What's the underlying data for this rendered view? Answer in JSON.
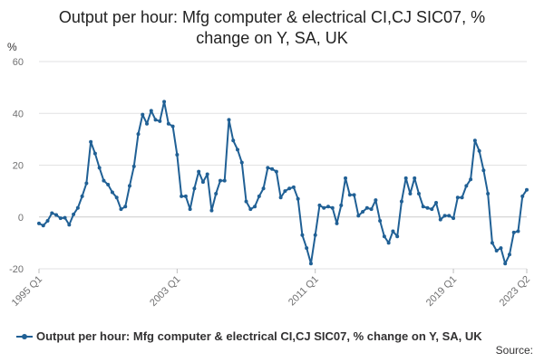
{
  "chart_data": {
    "type": "line",
    "title_line1": "Output per hour: Mfg computer & electrical CI,CJ SIC07, %",
    "title_line2": "change on Y, SA, UK",
    "unit_label": "%",
    "ylim": [
      -20,
      60
    ],
    "y_ticks": [
      "-20",
      "0",
      "20",
      "40",
      "60"
    ],
    "x_tick_labels": [
      "1995 Q1",
      "2003 Q1",
      "2011 Q1",
      "2019 Q1",
      "2023 Q2"
    ],
    "grid": true,
    "legend_position": "bottom-left",
    "series": [
      {
        "name": "Output per hour: Mfg computer & electrical CI,CJ SIC07, % change on Y, SA, UK",
        "color": "#206095",
        "x": [
          "1995 Q1",
          "1995 Q2",
          "1995 Q3",
          "1995 Q4",
          "1996 Q1",
          "1996 Q2",
          "1996 Q3",
          "1996 Q4",
          "1997 Q1",
          "1997 Q2",
          "1997 Q3",
          "1997 Q4",
          "1998 Q1",
          "1998 Q2",
          "1998 Q3",
          "1998 Q4",
          "1999 Q1",
          "1999 Q2",
          "1999 Q3",
          "1999 Q4",
          "2000 Q1",
          "2000 Q2",
          "2000 Q3",
          "2000 Q4",
          "2001 Q1",
          "2001 Q2",
          "2001 Q3",
          "2001 Q4",
          "2002 Q1",
          "2002 Q2",
          "2002 Q3",
          "2002 Q4",
          "2003 Q1",
          "2003 Q2",
          "2003 Q3",
          "2003 Q4",
          "2004 Q1",
          "2004 Q2",
          "2004 Q3",
          "2004 Q4",
          "2005 Q1",
          "2005 Q2",
          "2005 Q3",
          "2005 Q4",
          "2006 Q1",
          "2006 Q2",
          "2006 Q3",
          "2006 Q4",
          "2007 Q1",
          "2007 Q2",
          "2007 Q3",
          "2007 Q4",
          "2008 Q1",
          "2008 Q2",
          "2008 Q3",
          "2008 Q4",
          "2009 Q1",
          "2009 Q2",
          "2009 Q3",
          "2009 Q4",
          "2010 Q1",
          "2010 Q2",
          "2010 Q3",
          "2010 Q4",
          "2011 Q1",
          "2011 Q2",
          "2011 Q3",
          "2011 Q4",
          "2012 Q1",
          "2012 Q2",
          "2012 Q3",
          "2012 Q4",
          "2013 Q1",
          "2013 Q2",
          "2013 Q3",
          "2013 Q4",
          "2014 Q1",
          "2014 Q2",
          "2014 Q3",
          "2014 Q4",
          "2015 Q1",
          "2015 Q2",
          "2015 Q3",
          "2015 Q4",
          "2016 Q1",
          "2016 Q2",
          "2016 Q3",
          "2016 Q4",
          "2017 Q1",
          "2017 Q2",
          "2017 Q3",
          "2017 Q4",
          "2018 Q1",
          "2018 Q2",
          "2018 Q3",
          "2018 Q4",
          "2019 Q1",
          "2019 Q2",
          "2019 Q3",
          "2019 Q4",
          "2020 Q1",
          "2020 Q2",
          "2020 Q3",
          "2020 Q4",
          "2021 Q1",
          "2021 Q2",
          "2021 Q3",
          "2021 Q4",
          "2022 Q1",
          "2022 Q2",
          "2022 Q3",
          "2022 Q4",
          "2023 Q1",
          "2023 Q2"
        ],
        "values": [
          -2.5,
          -3.3,
          -1.5,
          1.5,
          0.8,
          -0.5,
          -0.3,
          -3.0,
          1.0,
          3.5,
          8.0,
          13.0,
          29.0,
          24.5,
          19.0,
          14.0,
          12.5,
          9.5,
          7.5,
          3.0,
          4.0,
          12.0,
          19.5,
          32.0,
          39.5,
          36.0,
          41.0,
          37.5,
          37.0,
          44.5,
          36.0,
          35.0,
          24.0,
          8.0,
          8.0,
          3.0,
          11.0,
          17.5,
          13.5,
          16.5,
          2.5,
          9.0,
          14.0,
          14.0,
          37.5,
          29.5,
          26.0,
          21.0,
          6.0,
          3.0,
          4.0,
          8.0,
          11.0,
          19.0,
          18.5,
          17.5,
          7.5,
          10.0,
          11.0,
          11.5,
          7.0,
          -7.0,
          -12.0,
          -18.0,
          -7.0,
          4.5,
          3.5,
          4.0,
          3.5,
          -2.5,
          4.5,
          15.0,
          8.5,
          8.5,
          0.5,
          2.0,
          3.5,
          3.0,
          6.5,
          -1.5,
          -7.5,
          -10.0,
          -5.5,
          -7.5,
          6.0,
          15.0,
          9.0,
          15.0,
          9.0,
          4.0,
          3.5,
          3.0,
          5.5,
          -1.0,
          0.5,
          0.5,
          -0.5,
          7.5,
          7.5,
          12.0,
          14.5,
          29.5,
          25.5,
          18.0,
          9.0,
          -10.0,
          -13.0,
          -12.0,
          -18.0,
          -14.5,
          -6.0,
          -5.5,
          8.0,
          10.5
        ]
      }
    ]
  },
  "source_label": "Source:"
}
